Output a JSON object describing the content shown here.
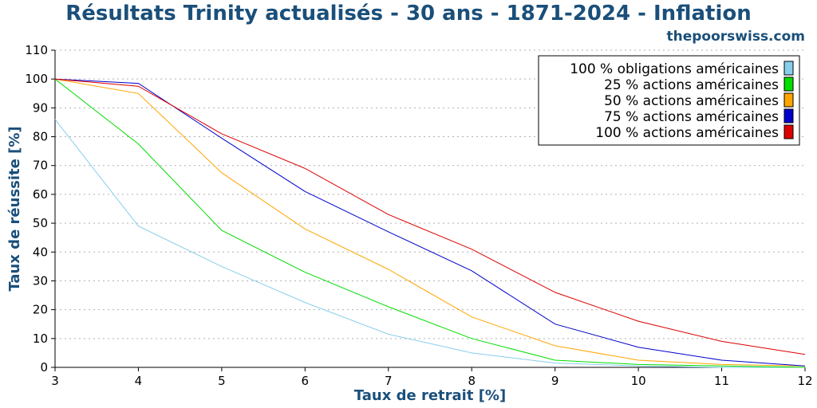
{
  "header": {
    "title": "Résultats Trinity actualisés - 30 ans - 1871-2024 - Inflation",
    "source": "thepoorswiss.com"
  },
  "chart_data": {
    "type": "line",
    "title": "Résultats Trinity actualisés - 30 ans - 1871-2024 - Inflation",
    "xlabel": "Taux de retrait [%]",
    "ylabel": "Taux de réussite [%]",
    "x": [
      3,
      4,
      5,
      6,
      7,
      8,
      9,
      10,
      11,
      12
    ],
    "xlim": [
      3,
      12
    ],
    "ylim": [
      0,
      110
    ],
    "xticks": [
      3,
      4,
      5,
      6,
      7,
      8,
      9,
      10,
      11,
      12
    ],
    "yticks": [
      0,
      10,
      20,
      30,
      40,
      50,
      60,
      70,
      80,
      90,
      100,
      110
    ],
    "grid": "horizontal dotted",
    "legend_position": "top-right",
    "series": [
      {
        "name": "100 % obligations américaines",
        "color": "#87ceeb",
        "values": [
          86,
          49,
          35,
          22.5,
          11.5,
          5,
          1.5,
          0.5,
          0,
          0
        ]
      },
      {
        "name": "25 % actions américaines",
        "color": "#00dd00",
        "values": [
          100,
          77.5,
          47.5,
          33,
          21,
          10,
          2.5,
          1,
          0.5,
          0
        ]
      },
      {
        "name": "50 % actions américaines",
        "color": "#ffa500",
        "values": [
          100,
          95,
          67.5,
          48,
          34,
          17.5,
          7.5,
          2.5,
          1,
          0.5
        ]
      },
      {
        "name": "75 % actions américaines",
        "color": "#0000cc",
        "values": [
          100,
          98.5,
          79.5,
          61,
          47,
          33.5,
          15,
          7,
          2.5,
          0.5
        ]
      },
      {
        "name": "100 % actions américaines",
        "color": "#dd0000",
        "values": [
          100,
          97.5,
          81,
          69,
          53,
          41,
          26,
          16,
          9,
          4.5
        ]
      }
    ]
  }
}
